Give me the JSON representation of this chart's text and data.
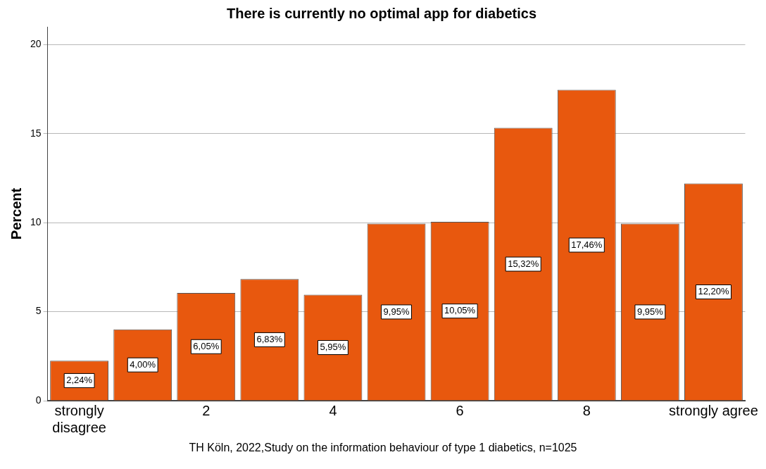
{
  "chart_data": {
    "type": "bar",
    "title": "There is currently no optimal app for diabetics",
    "ylabel": "Percent",
    "categories": [
      "strongly disagree",
      null,
      "2",
      null,
      "4",
      null,
      "6",
      null,
      "8",
      null,
      "strongly agree"
    ],
    "values": [
      2.24,
      4.0,
      6.05,
      6.83,
      5.95,
      9.95,
      10.05,
      15.32,
      17.46,
      9.95,
      12.2
    ],
    "value_labels": [
      "2,24%",
      "4,00%",
      "6,05%",
      "6,83%",
      "5,95%",
      "9,95%",
      "10,05%",
      "15,32%",
      "17,46%",
      "9,95%",
      "12,20%"
    ],
    "color": "#e8580e",
    "ylim": [
      0,
      21
    ],
    "yticks": [
      0,
      5,
      10,
      15,
      20
    ],
    "grid": "y",
    "legend": false,
    "annotations": [
      "TH Köln, 2022,Study on the information behaviour of type 1 diabetics, n=1025"
    ]
  }
}
